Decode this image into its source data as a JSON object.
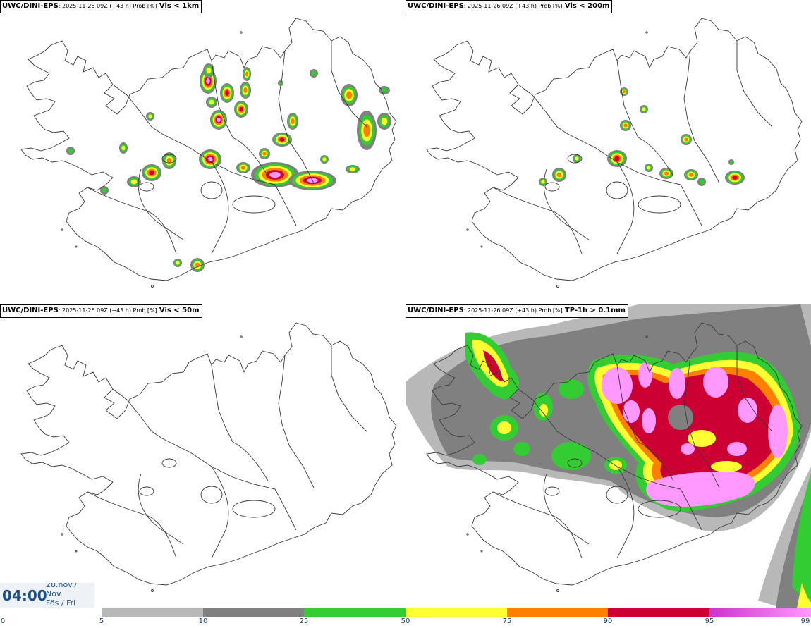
{
  "panels": [
    {
      "source": "UWC/DINI-EPS",
      "meta": ": 2025-11-26 09Z (+43 h) Prob [%]",
      "variable": "Vis < 1km"
    },
    {
      "source": "UWC/DINI-EPS",
      "meta": ": 2025-11-26 09Z (+43 h) Prob [%]",
      "variable": "Vis < 200m"
    },
    {
      "source": "UWC/DINI-EPS",
      "meta": ": 2025-11-26 09Z (+43 h) Prob [%]",
      "variable": "Vis < 50m"
    },
    {
      "source": "UWC/DINI-EPS",
      "meta": ": 2025-11-26 09Z (+43 h) Prob [%]",
      "variable": "TP-1h > 0.1mm"
    }
  ],
  "valid_time": {
    "time": "04:00",
    "date_line1": "28.nóv./",
    "date_line2": "Nov",
    "date_line3": "Fös / Fri"
  },
  "colorbar": {
    "labels": [
      "0",
      "5",
      "10",
      "25",
      "50",
      "75",
      "90",
      "95",
      "99"
    ],
    "colors": [
      "#ffffff",
      "#b8b8b8",
      "#808080",
      "#33cc33",
      "#ffff33",
      "#ff7f00",
      "#cc0033",
      "#cc33cc",
      "#ff99ff"
    ]
  },
  "map_colors": {
    "outline": "#3a3a3a",
    "grey_light": "#b8b8b8",
    "grey_dark": "#808080",
    "green": "#33cc33",
    "yellow": "#ffff33",
    "orange": "#ff7f00",
    "red": "#cc0033",
    "pink": "#ff99ff"
  }
}
